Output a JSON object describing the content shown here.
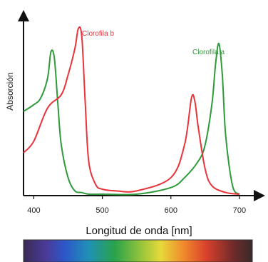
{
  "chart_data": {
    "type": "line",
    "xlabel": "Longitud de onda [nm]",
    "ylabel": "Absorción",
    "xticks": [
      400,
      500,
      600,
      700
    ],
    "xlim": [
      385,
      725
    ],
    "ylim": [
      0,
      1
    ],
    "grid": false,
    "legend": "inline labels near peaks",
    "colors": {
      "chlorophyll_a": "#2e9a3a",
      "chlorophyll_b": "#e8333a",
      "axis": "#111111"
    },
    "series": [
      {
        "name": "Clorofila a",
        "x": [
          385,
          400,
          410,
          420,
          425,
          430,
          435,
          440,
          450,
          460,
          470,
          480,
          500,
          550,
          600,
          620,
          640,
          650,
          660,
          665,
          670,
          675,
          680,
          690,
          700
        ],
        "y": [
          0.5,
          0.54,
          0.58,
          0.7,
          0.86,
          0.82,
          0.55,
          0.3,
          0.1,
          0.02,
          0.01,
          0.0,
          0.0,
          0.0,
          0.04,
          0.1,
          0.2,
          0.3,
          0.55,
          0.78,
          0.91,
          0.72,
          0.35,
          0.05,
          0.0
        ]
      },
      {
        "name": "Clorofila b",
        "x": [
          385,
          400,
          420,
          440,
          450,
          460,
          465,
          470,
          475,
          480,
          490,
          500,
          520,
          550,
          600,
          620,
          630,
          635,
          640,
          650,
          660,
          680,
          700
        ],
        "y": [
          0.25,
          0.32,
          0.52,
          0.6,
          0.72,
          0.88,
          1.0,
          0.95,
          0.55,
          0.2,
          0.06,
          0.03,
          0.02,
          0.02,
          0.1,
          0.3,
          0.58,
          0.56,
          0.4,
          0.15,
          0.05,
          0.01,
          0.0
        ]
      }
    ]
  }
}
